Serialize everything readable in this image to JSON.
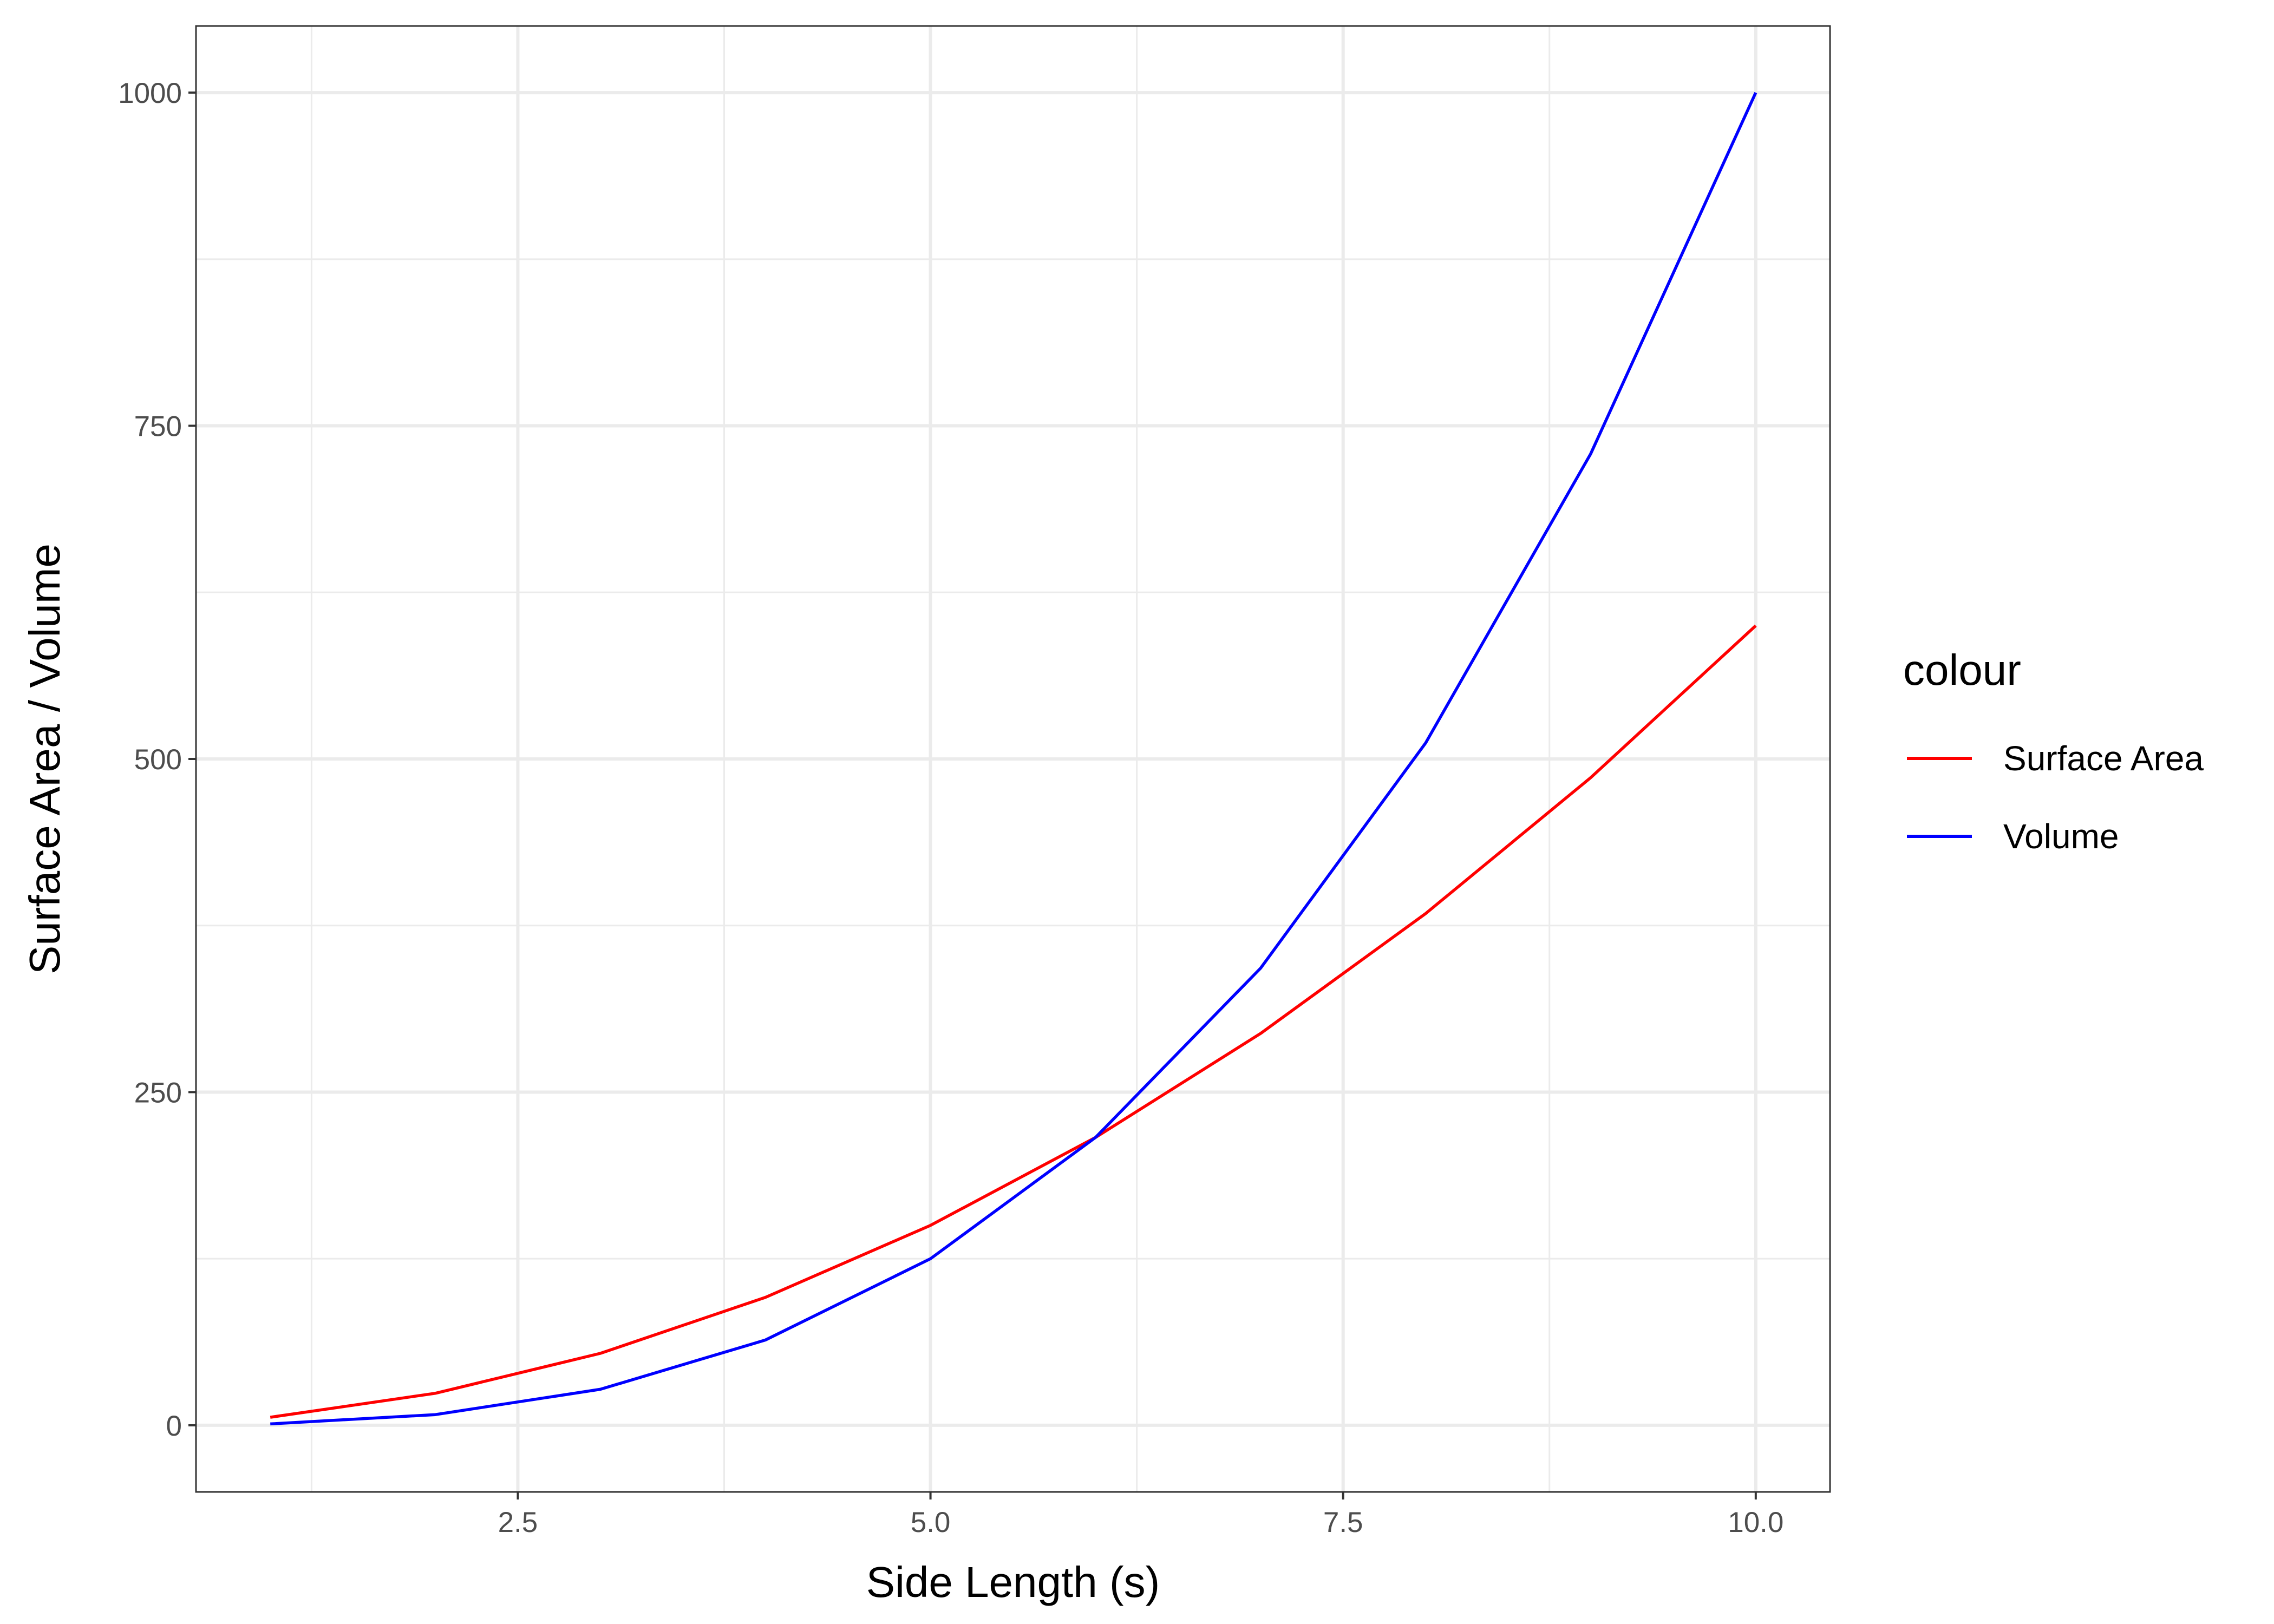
{
  "chart_data": {
    "type": "line",
    "xlabel": "Side Length (s)",
    "ylabel": "Surface Area / Volume",
    "xlim": [
      0.55,
      10.45
    ],
    "ylim": [
      -50,
      1050
    ],
    "x_ticks": [
      2.5,
      5.0,
      7.5,
      10.0
    ],
    "x_tick_labels": [
      "2.5",
      "5.0",
      "7.5",
      "10.0"
    ],
    "y_ticks": [
      0,
      250,
      500,
      750,
      1000
    ],
    "y_tick_labels": [
      "0",
      "250",
      "500",
      "750",
      "1000"
    ],
    "grid": true,
    "legend": {
      "title": "colour",
      "position": "right"
    },
    "x": [
      1,
      2,
      3,
      4,
      5,
      6,
      7,
      8,
      9,
      10
    ],
    "series": [
      {
        "name": "Surface Area",
        "color": "#ff0000",
        "values": [
          6,
          24,
          54,
          96,
          150,
          216,
          294,
          384,
          486,
          600
        ]
      },
      {
        "name": "Volume",
        "color": "#0000ff",
        "values": [
          1,
          8,
          27,
          64,
          125,
          216,
          343,
          512,
          729,
          1000
        ]
      }
    ]
  }
}
